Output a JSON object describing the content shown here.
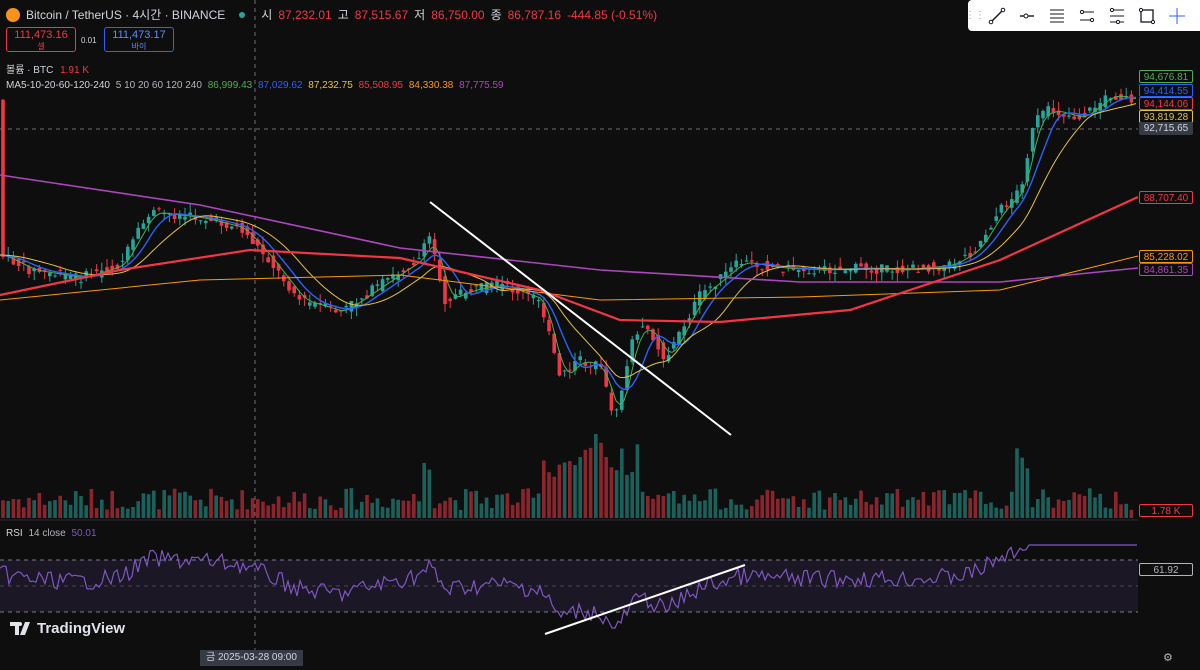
{
  "header": {
    "symbol_title": "Bitcoin / TetherUS · 4시간 · BINANCE",
    "open_label": "시",
    "open": "87,232.01",
    "high_label": "고",
    "high": "87,515.67",
    "low_label": "저",
    "low": "86,750.00",
    "close_label": "종",
    "close": "86,787.16",
    "change": "-444.85 (-0.51%)"
  },
  "trade": {
    "sell_price": "111,473.16",
    "sell_label": "셀",
    "spread": "0.01",
    "buy_price": "111,473.17",
    "buy_label": "바이"
  },
  "volume_legend": {
    "title": "볼륨 · BTC",
    "value": "1.91 K"
  },
  "ma_legend": {
    "title": "MA5-10-20-60-120-240",
    "params": "5 10 20 60 120 240",
    "values": [
      "86,999.43",
      "87,029.62",
      "87,232.75",
      "85,508.95",
      "84,330.38",
      "87,775.59"
    ]
  },
  "price_labels": [
    {
      "text": "94,676.81",
      "color": "#4caf50"
    },
    {
      "text": "94,414.55",
      "color": "#2962ff"
    },
    {
      "text": "94,144.06",
      "color": "#f23645"
    },
    {
      "text": "93,819.28",
      "color": "#e5c33b"
    },
    {
      "text": "92,715.65",
      "color": "#d1d4dc"
    },
    {
      "text": "88,707.40",
      "color": "#f23645"
    },
    {
      "text": "85,228.02",
      "color": "#ff9800"
    },
    {
      "text": "84,861.35",
      "color": "#ab47bc"
    },
    {
      "text": "1.78 K",
      "color": "#f23645"
    },
    {
      "text": "61.92",
      "color": "#b2b5be"
    }
  ],
  "rsi": {
    "title": "RSI",
    "params": "14 close",
    "value": "50.01"
  },
  "brand": "TradingView",
  "crosshair_date": "금  2025-03-28   09:00",
  "toolbar": [
    "grip-icon",
    "trend-line-icon",
    "horizontal-ray-icon",
    "fib-retracement-icon",
    "parallel-channel-icon",
    "pitchfork-icon",
    "rectangle-icon",
    "crosshair-icon"
  ],
  "colors": {
    "up": "#26a69a",
    "down": "#f23645",
    "ma5": "#4caf50",
    "ma10": "#2962ff",
    "ma20": "#e5c33b",
    "ma60": "#f23645",
    "ma120": "#ff9800",
    "ma240": "#ab47bc",
    "rsi": "#7e57c2"
  }
}
